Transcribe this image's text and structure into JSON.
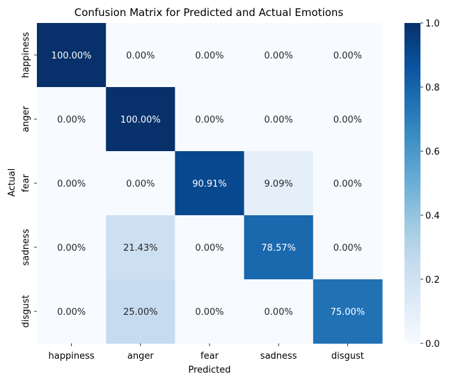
{
  "chart_data": {
    "type": "heatmap",
    "title": "Confusion Matrix for Predicted and Actual Emotions",
    "xlabel": "Predicted",
    "ylabel": "Actual",
    "x_categories": [
      "happiness",
      "anger",
      "fear",
      "sadness",
      "disgust"
    ],
    "y_categories": [
      "happiness",
      "anger",
      "fear",
      "sadness",
      "disgust"
    ],
    "values": [
      [
        1.0,
        0.0,
        0.0,
        0.0,
        0.0
      ],
      [
        0.0,
        1.0,
        0.0,
        0.0,
        0.0
      ],
      [
        0.0,
        0.0,
        0.9091,
        0.0909,
        0.0
      ],
      [
        0.0,
        0.2143,
        0.0,
        0.7857,
        0.0
      ],
      [
        0.0,
        0.25,
        0.0,
        0.0,
        0.75
      ]
    ],
    "annotations": [
      [
        "100.00%",
        "0.00%",
        "0.00%",
        "0.00%",
        "0.00%"
      ],
      [
        "0.00%",
        "100.00%",
        "0.00%",
        "0.00%",
        "0.00%"
      ],
      [
        "0.00%",
        "0.00%",
        "90.91%",
        "9.09%",
        "0.00%"
      ],
      [
        "0.00%",
        "21.43%",
        "0.00%",
        "78.57%",
        "0.00%"
      ],
      [
        "0.00%",
        "25.00%",
        "0.00%",
        "0.00%",
        "75.00%"
      ]
    ],
    "colormap": "Blues",
    "colorbar": {
      "range": [
        0.0,
        1.0
      ],
      "ticks": [
        "0.0",
        "0.2",
        "0.4",
        "0.6",
        "0.8",
        "1.0"
      ]
    },
    "grid": false
  }
}
